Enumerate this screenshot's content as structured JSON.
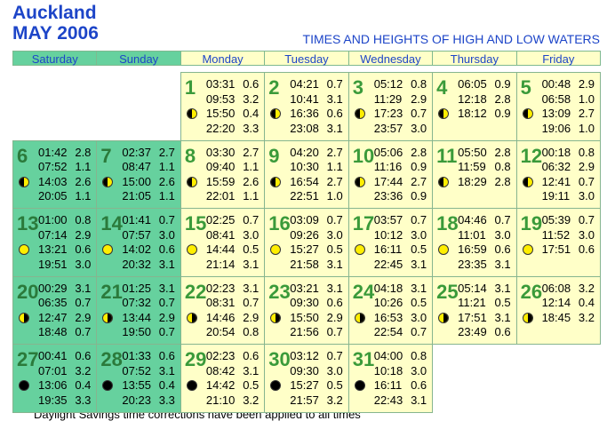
{
  "header": {
    "city": "Auckland",
    "month": "MAY 2006",
    "title": "TIMES AND HEIGHTS OF HIGH AND LOW WATERS"
  },
  "weekdays": [
    "Saturday",
    "Sunday",
    "Monday",
    "Tuesday",
    "Wednesday",
    "Thursday",
    "Friday"
  ],
  "days": [
    {
      "day": 1,
      "tides": [
        {
          "time": "03:31",
          "height": "0.6"
        },
        {
          "time": "09:53",
          "height": "3.2"
        },
        {
          "time": "15:50",
          "height": "0.4"
        },
        {
          "time": "22:20",
          "height": "3.3"
        }
      ]
    },
    {
      "day": 2,
      "tides": [
        {
          "time": "04:21",
          "height": "0.7"
        },
        {
          "time": "10:41",
          "height": "3.1"
        },
        {
          "time": "16:36",
          "height": "0.6"
        },
        {
          "time": "23:08",
          "height": "3.1"
        }
      ]
    },
    {
      "day": 3,
      "tides": [
        {
          "time": "05:12",
          "height": "0.8"
        },
        {
          "time": "11:29",
          "height": "2.9"
        },
        {
          "time": "17:23",
          "height": "0.7"
        },
        {
          "time": "23:57",
          "height": "3.0"
        }
      ]
    },
    {
      "day": 4,
      "tides": [
        {
          "time": "06:05",
          "height": "0.9"
        },
        {
          "time": "12:18",
          "height": "2.8"
        },
        {
          "time": "18:12",
          "height": "0.9"
        }
      ]
    },
    {
      "day": 5,
      "tides": [
        {
          "time": "00:48",
          "height": "2.9"
        },
        {
          "time": "06:58",
          "height": "1.0"
        },
        {
          "time": "13:09",
          "height": "2.7"
        },
        {
          "time": "19:06",
          "height": "1.0"
        }
      ]
    },
    {
      "day": 6,
      "tides": [
        {
          "time": "01:42",
          "height": "2.8"
        },
        {
          "time": "07:52",
          "height": "1.1"
        },
        {
          "time": "14:03",
          "height": "2.6"
        },
        {
          "time": "20:05",
          "height": "1.1"
        }
      ]
    },
    {
      "day": 7,
      "tides": [
        {
          "time": "02:37",
          "height": "2.7"
        },
        {
          "time": "08:47",
          "height": "1.1"
        },
        {
          "time": "15:00",
          "height": "2.6"
        },
        {
          "time": "21:05",
          "height": "1.1"
        }
      ]
    },
    {
      "day": 8,
      "tides": [
        {
          "time": "03:30",
          "height": "2.7"
        },
        {
          "time": "09:40",
          "height": "1.1"
        },
        {
          "time": "15:59",
          "height": "2.6"
        },
        {
          "time": "22:01",
          "height": "1.1"
        }
      ]
    },
    {
      "day": 9,
      "tides": [
        {
          "time": "04:20",
          "height": "2.7"
        },
        {
          "time": "10:30",
          "height": "1.1"
        },
        {
          "time": "16:54",
          "height": "2.7"
        },
        {
          "time": "22:51",
          "height": "1.0"
        }
      ]
    },
    {
      "day": 10,
      "tides": [
        {
          "time": "05:06",
          "height": "2.8"
        },
        {
          "time": "11:16",
          "height": "0.9"
        },
        {
          "time": "17:44",
          "height": "2.7"
        },
        {
          "time": "23:36",
          "height": "0.9"
        }
      ]
    },
    {
      "day": 11,
      "tides": [
        {
          "time": "05:50",
          "height": "2.8"
        },
        {
          "time": "11:59",
          "height": "0.8"
        },
        {
          "time": "18:29",
          "height": "2.8"
        }
      ]
    },
    {
      "day": 12,
      "tides": [
        {
          "time": "00:18",
          "height": "0.8"
        },
        {
          "time": "06:32",
          "height": "2.9"
        },
        {
          "time": "12:41",
          "height": "0.7"
        },
        {
          "time": "19:11",
          "height": "3.0"
        }
      ]
    },
    {
      "day": 13,
      "tides": [
        {
          "time": "01:00",
          "height": "0.8"
        },
        {
          "time": "07:14",
          "height": "2.9"
        },
        {
          "time": "13:21",
          "height": "0.6"
        },
        {
          "time": "19:51",
          "height": "3.0"
        }
      ]
    },
    {
      "day": 14,
      "tides": [
        {
          "time": "01:41",
          "height": "0.7"
        },
        {
          "time": "07:57",
          "height": "3.0"
        },
        {
          "time": "14:02",
          "height": "0.6"
        },
        {
          "time": "20:32",
          "height": "3.1"
        }
      ]
    },
    {
      "day": 15,
      "tides": [
        {
          "time": "02:25",
          "height": "0.7"
        },
        {
          "time": "08:41",
          "height": "3.0"
        },
        {
          "time": "14:44",
          "height": "0.5"
        },
        {
          "time": "21:14",
          "height": "3.1"
        }
      ]
    },
    {
      "day": 16,
      "tides": [
        {
          "time": "03:09",
          "height": "0.7"
        },
        {
          "time": "09:26",
          "height": "3.0"
        },
        {
          "time": "15:27",
          "height": "0.5"
        },
        {
          "time": "21:58",
          "height": "3.1"
        }
      ]
    },
    {
      "day": 17,
      "tides": [
        {
          "time": "03:57",
          "height": "0.7"
        },
        {
          "time": "10:12",
          "height": "3.0"
        },
        {
          "time": "16:11",
          "height": "0.5"
        },
        {
          "time": "22:45",
          "height": "3.1"
        }
      ]
    },
    {
      "day": 18,
      "tides": [
        {
          "time": "04:46",
          "height": "0.7"
        },
        {
          "time": "11:01",
          "height": "3.0"
        },
        {
          "time": "16:59",
          "height": "0.6"
        },
        {
          "time": "23:35",
          "height": "3.1"
        }
      ]
    },
    {
      "day": 19,
      "tides": [
        {
          "time": "05:39",
          "height": "0.7"
        },
        {
          "time": "11:52",
          "height": "3.0"
        },
        {
          "time": "17:51",
          "height": "0.6"
        }
      ]
    },
    {
      "day": 20,
      "tides": [
        {
          "time": "00:29",
          "height": "3.1"
        },
        {
          "time": "06:35",
          "height": "0.7"
        },
        {
          "time": "12:47",
          "height": "2.9"
        },
        {
          "time": "18:48",
          "height": "0.7"
        }
      ]
    },
    {
      "day": 21,
      "tides": [
        {
          "time": "01:25",
          "height": "3.1"
        },
        {
          "time": "07:32",
          "height": "0.7"
        },
        {
          "time": "13:44",
          "height": "2.9"
        },
        {
          "time": "19:50",
          "height": "0.7"
        }
      ]
    },
    {
      "day": 22,
      "tides": [
        {
          "time": "02:23",
          "height": "3.1"
        },
        {
          "time": "08:31",
          "height": "0.7"
        },
        {
          "time": "14:46",
          "height": "2.9"
        },
        {
          "time": "20:54",
          "height": "0.8"
        }
      ]
    },
    {
      "day": 23,
      "tides": [
        {
          "time": "03:21",
          "height": "3.1"
        },
        {
          "time": "09:30",
          "height": "0.6"
        },
        {
          "time": "15:50",
          "height": "2.9"
        },
        {
          "time": "21:56",
          "height": "0.7"
        }
      ]
    },
    {
      "day": 24,
      "tides": [
        {
          "time": "04:18",
          "height": "3.1"
        },
        {
          "time": "10:26",
          "height": "0.5"
        },
        {
          "time": "16:53",
          "height": "3.0"
        },
        {
          "time": "22:54",
          "height": "0.7"
        }
      ]
    },
    {
      "day": 25,
      "tides": [
        {
          "time": "05:14",
          "height": "3.1"
        },
        {
          "time": "11:21",
          "height": "0.5"
        },
        {
          "time": "17:51",
          "height": "3.1"
        },
        {
          "time": "23:49",
          "height": "0.6"
        }
      ]
    },
    {
      "day": 26,
      "tides": [
        {
          "time": "06:08",
          "height": "3.2"
        },
        {
          "time": "12:14",
          "height": "0.4"
        },
        {
          "time": "18:45",
          "height": "3.2"
        }
      ]
    },
    {
      "day": 27,
      "tides": [
        {
          "time": "00:41",
          "height": "0.6"
        },
        {
          "time": "07:01",
          "height": "3.2"
        },
        {
          "time": "13:06",
          "height": "0.4"
        },
        {
          "time": "19:35",
          "height": "3.3"
        }
      ]
    },
    {
      "day": 28,
      "tides": [
        {
          "time": "01:33",
          "height": "0.6"
        },
        {
          "time": "07:52",
          "height": "3.1"
        },
        {
          "time": "13:55",
          "height": "0.4"
        },
        {
          "time": "20:23",
          "height": "3.3"
        }
      ]
    },
    {
      "day": 29,
      "tides": [
        {
          "time": "02:23",
          "height": "0.6"
        },
        {
          "time": "08:42",
          "height": "3.1"
        },
        {
          "time": "14:42",
          "height": "0.5"
        },
        {
          "time": "21:10",
          "height": "3.2"
        }
      ]
    },
    {
      "day": 30,
      "tides": [
        {
          "time": "03:12",
          "height": "0.7"
        },
        {
          "time": "09:30",
          "height": "3.0"
        },
        {
          "time": "15:27",
          "height": "0.5"
        },
        {
          "time": "21:57",
          "height": "3.2"
        }
      ]
    },
    {
      "day": 31,
      "tides": [
        {
          "time": "04:00",
          "height": "0.8"
        },
        {
          "time": "10:18",
          "height": "3.0"
        },
        {
          "time": "16:11",
          "height": "0.6"
        },
        {
          "time": "22:43",
          "height": "3.1"
        }
      ]
    }
  ],
  "footer": "Daylight Savings time corrections have been applied to all times"
}
